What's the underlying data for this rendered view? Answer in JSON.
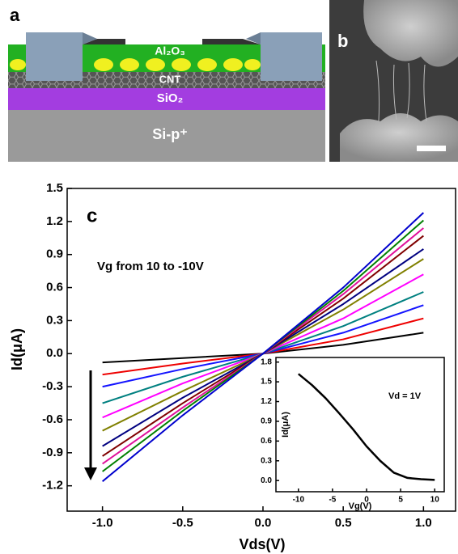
{
  "figure": {
    "panel_labels": [
      "a",
      "b"
    ],
    "schematic_layers": [
      "Al₂O₃",
      "CNT",
      "SiO₂",
      "Si-p⁺"
    ]
  },
  "chart_data": [
    {
      "type": "line",
      "panel_label": "c",
      "annotation": "Vg from 10 to -10V",
      "x_label": "Vds(V)",
      "y_label": "Id(μA)",
      "x": [
        -1,
        -0.5,
        0,
        0.5,
        1
      ],
      "xlim": [
        -1.22,
        1.2
      ],
      "ylim": [
        -1.43,
        1.5
      ],
      "xticks": [
        {
          "value": -1,
          "label": "-1.0"
        },
        {
          "value": -0.5,
          "label": "-0.5"
        },
        {
          "value": 0,
          "label": "0.0"
        },
        0.5,
        {
          "value": 1,
          "label": "1.0"
        }
      ],
      "yticks": [
        -1.2,
        -0.9,
        -0.6,
        -0.3,
        {
          "value": 0,
          "label": "0.0"
        },
        0.3,
        0.6,
        0.9,
        1.2,
        1.5
      ],
      "series": [
        {
          "color": "#000000",
          "values": [
            -0.08,
            -0.04,
            0,
            0.08,
            0.19
          ]
        },
        {
          "color": "#ee0000",
          "values": [
            -0.19,
            -0.09,
            0,
            0.13,
            0.32
          ]
        },
        {
          "color": "#1414ff",
          "values": [
            -0.3,
            -0.14,
            0,
            0.19,
            0.44
          ]
        },
        {
          "color": "#008080",
          "values": [
            -0.45,
            -0.21,
            0,
            0.25,
            0.56
          ]
        },
        {
          "color": "#ff00ff",
          "values": [
            -0.58,
            -0.27,
            0,
            0.32,
            0.72
          ]
        },
        {
          "color": "#808000",
          "values": [
            -0.7,
            -0.34,
            0,
            0.4,
            0.86
          ]
        },
        {
          "color": "#000080",
          "values": [
            -0.84,
            -0.4,
            0,
            0.45,
            0.95
          ]
        },
        {
          "color": "#800000",
          "values": [
            -0.93,
            -0.45,
            0,
            0.5,
            1.07
          ]
        },
        {
          "color": "#e0109a",
          "values": [
            -1.0,
            -0.49,
            0,
            0.54,
            1.14
          ]
        },
        {
          "color": "#008000",
          "values": [
            -1.07,
            -0.52,
            0,
            0.57,
            1.21
          ]
        },
        {
          "color": "#0000cd",
          "values": [
            -1.16,
            -0.56,
            0,
            0.6,
            1.28
          ]
        }
      ]
    },
    {
      "type": "line",
      "title": "Vd = 1V",
      "x_label": "Vg(V)",
      "y_label": "Id(μA)",
      "x": [
        -10,
        -8,
        -6,
        -4,
        -2,
        0,
        2,
        4,
        6,
        8,
        10
      ],
      "xlim": [
        -13.3,
        11.4
      ],
      "ylim": [
        -0.17,
        1.87
      ],
      "xticks": [
        -10,
        -5,
        0,
        5,
        10
      ],
      "yticks": [
        {
          "value": 0,
          "label": "0.0"
        },
        0.3,
        0.6,
        0.9,
        1.2,
        1.5,
        1.8
      ],
      "series": [
        {
          "color": "#000000",
          "values": [
            1.62,
            1.45,
            1.25,
            1.02,
            0.78,
            0.52,
            0.3,
            0.12,
            0.04,
            0.02,
            0.01
          ]
        }
      ]
    }
  ]
}
